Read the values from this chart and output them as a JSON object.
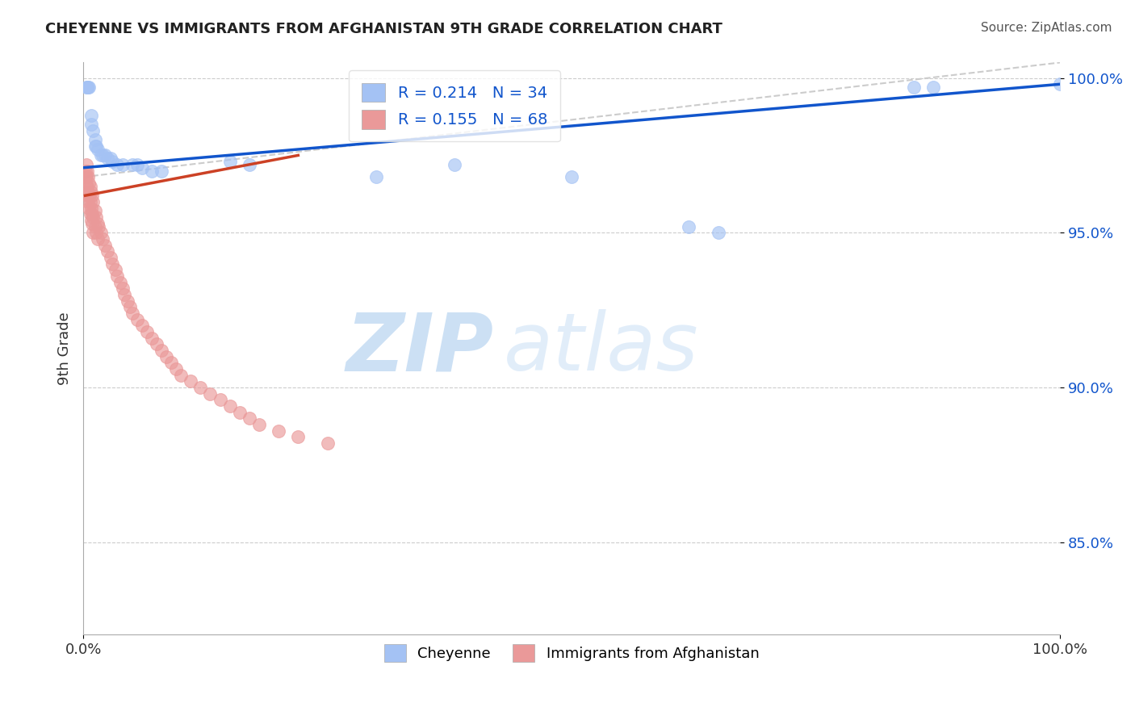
{
  "title": "CHEYENNE VS IMMIGRANTS FROM AFGHANISTAN 9TH GRADE CORRELATION CHART",
  "source": "Source: ZipAtlas.com",
  "ylabel": "9th Grade",
  "legend_blue_r": "0.214",
  "legend_blue_n": "34",
  "legend_pink_r": "0.155",
  "legend_pink_n": "68",
  "cheyenne_label": "Cheyenne",
  "afghanistan_label": "Immigrants from Afghanistan",
  "blue_color": "#a4c2f4",
  "pink_color": "#ea9999",
  "blue_line_color": "#1155cc",
  "pink_line_color": "#cc4125",
  "diag_color": "#cccccc",
  "watermark_zip": "ZIP",
  "watermark_atlas": "atlas",
  "watermark_color_zip": "#aaccee",
  "watermark_color_atlas": "#bbddee",
  "blue_scatter": [
    [
      0.003,
      0.997
    ],
    [
      0.004,
      0.997
    ],
    [
      0.005,
      0.997
    ],
    [
      0.006,
      0.997
    ],
    [
      0.008,
      0.988
    ],
    [
      0.008,
      0.985
    ],
    [
      0.01,
      0.983
    ],
    [
      0.012,
      0.98
    ],
    [
      0.012,
      0.978
    ],
    [
      0.013,
      0.978
    ],
    [
      0.015,
      0.977
    ],
    [
      0.018,
      0.975
    ],
    [
      0.02,
      0.975
    ],
    [
      0.022,
      0.975
    ],
    [
      0.025,
      0.974
    ],
    [
      0.028,
      0.974
    ],
    [
      0.03,
      0.973
    ],
    [
      0.035,
      0.972
    ],
    [
      0.04,
      0.972
    ],
    [
      0.05,
      0.972
    ],
    [
      0.055,
      0.972
    ],
    [
      0.06,
      0.971
    ],
    [
      0.07,
      0.97
    ],
    [
      0.08,
      0.97
    ],
    [
      0.15,
      0.973
    ],
    [
      0.17,
      0.972
    ],
    [
      0.3,
      0.968
    ],
    [
      0.38,
      0.972
    ],
    [
      0.5,
      0.968
    ],
    [
      0.62,
      0.952
    ],
    [
      0.65,
      0.95
    ],
    [
      0.85,
      0.997
    ],
    [
      0.87,
      0.997
    ],
    [
      1.0,
      0.998
    ]
  ],
  "pink_scatter": [
    [
      0.002,
      0.97
    ],
    [
      0.002,
      0.968
    ],
    [
      0.003,
      0.972
    ],
    [
      0.003,
      0.968
    ],
    [
      0.003,
      0.965
    ],
    [
      0.004,
      0.97
    ],
    [
      0.004,
      0.965
    ],
    [
      0.004,
      0.962
    ],
    [
      0.005,
      0.968
    ],
    [
      0.005,
      0.963
    ],
    [
      0.005,
      0.96
    ],
    [
      0.006,
      0.966
    ],
    [
      0.006,
      0.962
    ],
    [
      0.006,
      0.958
    ],
    [
      0.007,
      0.965
    ],
    [
      0.007,
      0.96
    ],
    [
      0.007,
      0.956
    ],
    [
      0.008,
      0.963
    ],
    [
      0.008,
      0.958
    ],
    [
      0.008,
      0.954
    ],
    [
      0.009,
      0.962
    ],
    [
      0.009,
      0.956
    ],
    [
      0.009,
      0.953
    ],
    [
      0.01,
      0.96
    ],
    [
      0.01,
      0.955
    ],
    [
      0.01,
      0.95
    ],
    [
      0.012,
      0.957
    ],
    [
      0.012,
      0.952
    ],
    [
      0.013,
      0.955
    ],
    [
      0.013,
      0.95
    ],
    [
      0.015,
      0.953
    ],
    [
      0.015,
      0.948
    ],
    [
      0.016,
      0.952
    ],
    [
      0.018,
      0.95
    ],
    [
      0.02,
      0.948
    ],
    [
      0.022,
      0.946
    ],
    [
      0.025,
      0.944
    ],
    [
      0.028,
      0.942
    ],
    [
      0.03,
      0.94
    ],
    [
      0.033,
      0.938
    ],
    [
      0.035,
      0.936
    ],
    [
      0.038,
      0.934
    ],
    [
      0.04,
      0.932
    ],
    [
      0.042,
      0.93
    ],
    [
      0.045,
      0.928
    ],
    [
      0.048,
      0.926
    ],
    [
      0.05,
      0.924
    ],
    [
      0.055,
      0.922
    ],
    [
      0.06,
      0.92
    ],
    [
      0.065,
      0.918
    ],
    [
      0.07,
      0.916
    ],
    [
      0.075,
      0.914
    ],
    [
      0.08,
      0.912
    ],
    [
      0.085,
      0.91
    ],
    [
      0.09,
      0.908
    ],
    [
      0.095,
      0.906
    ],
    [
      0.1,
      0.904
    ],
    [
      0.11,
      0.902
    ],
    [
      0.12,
      0.9
    ],
    [
      0.13,
      0.898
    ],
    [
      0.14,
      0.896
    ],
    [
      0.15,
      0.894
    ],
    [
      0.16,
      0.892
    ],
    [
      0.17,
      0.89
    ],
    [
      0.18,
      0.888
    ],
    [
      0.2,
      0.886
    ],
    [
      0.22,
      0.884
    ],
    [
      0.25,
      0.882
    ]
  ],
  "xlim": [
    0.0,
    1.0
  ],
  "ylim": [
    0.82,
    1.005
  ],
  "ytick_positions": [
    0.85,
    0.9,
    0.95,
    1.0
  ],
  "ytick_labels": [
    "85.0%",
    "90.0%",
    "95.0%",
    "100.0%"
  ],
  "xtick_positions": [
    0.0,
    1.0
  ],
  "xtick_labels": [
    "0.0%",
    "100.0%"
  ],
  "blue_line_x": [
    0.0,
    1.0
  ],
  "blue_line_y": [
    0.971,
    0.998
  ],
  "pink_line_x": [
    0.002,
    0.22
  ],
  "pink_line_y": [
    0.962,
    0.975
  ],
  "diag_line_x": [
    0.0,
    1.0
  ],
  "diag_line_y": [
    0.968,
    1.005
  ]
}
